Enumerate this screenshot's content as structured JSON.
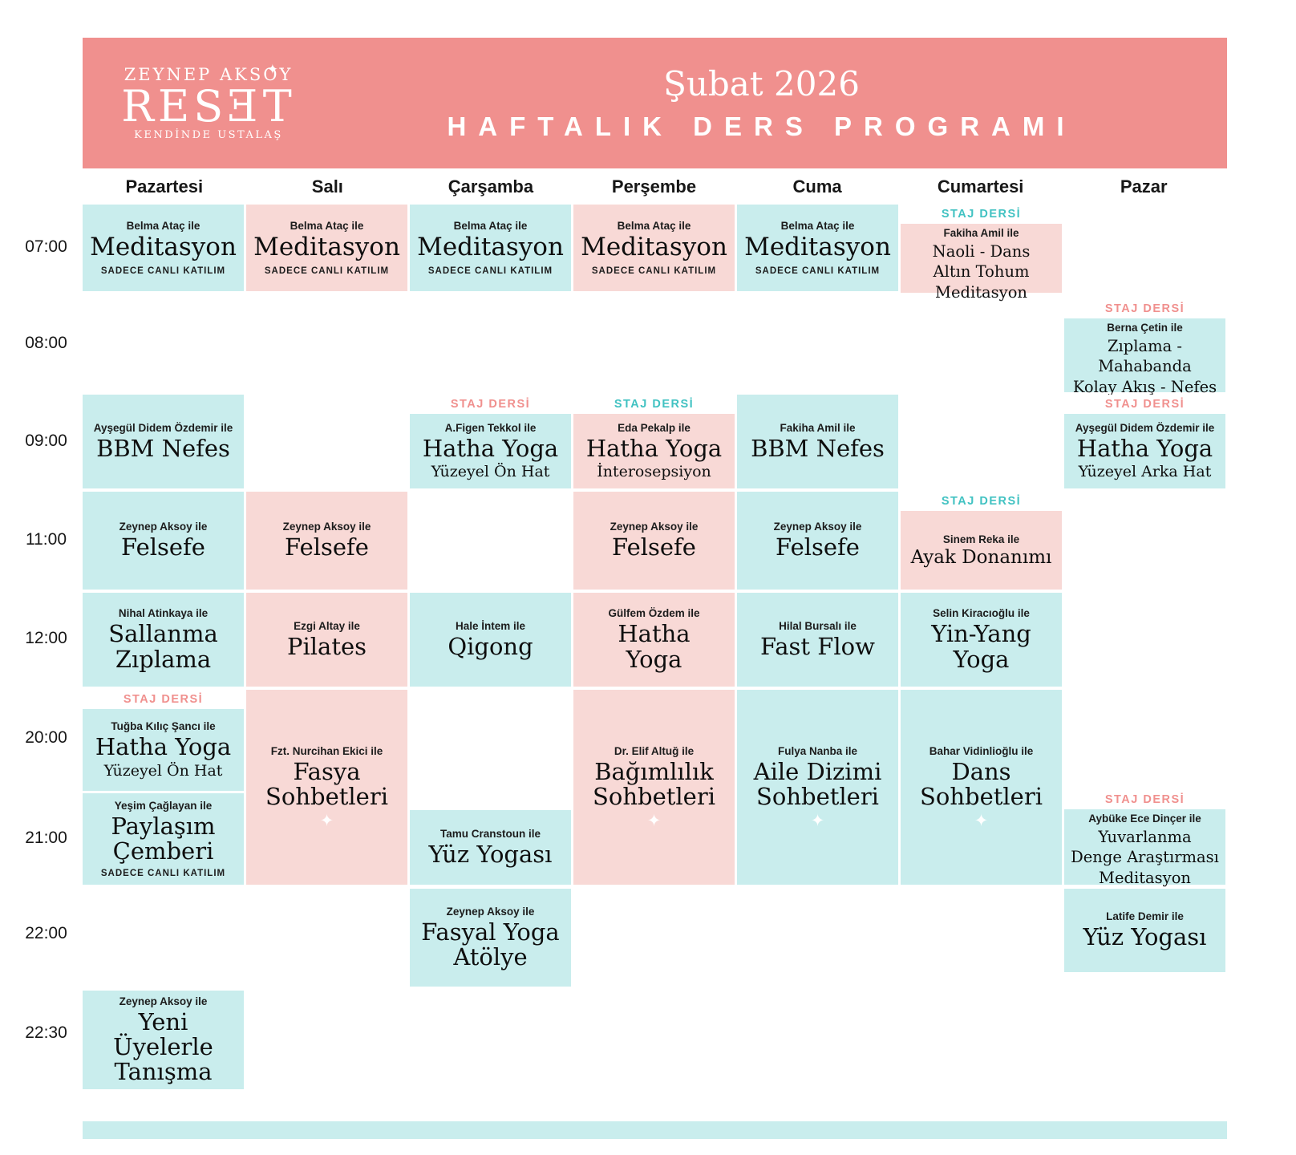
{
  "header": {
    "logo": {
      "top": "ZEYNEP AKSOY",
      "main": "RESƎT",
      "bottom": "KENDİNDE USTALAŞ"
    },
    "month": "Şubat 2026",
    "title": "HAFTALIK DERS PROGRAMI"
  },
  "labels": {
    "staj": "STAJ DERSİ",
    "live": "SADECE CANLI KATILIM"
  },
  "icons": {
    "sparkle": "✦"
  },
  "colors": {
    "banner": "#f0908e",
    "teal_cell": "#c9eded",
    "pink_cell": "#f8d9d6",
    "staj_teal": "#41c2c2",
    "staj_pink": "#f0908e"
  },
  "days": [
    "Pazartesi",
    "Salı",
    "Çarşamba",
    "Perşembe",
    "Cuma",
    "Cumartesi",
    "Pazar"
  ],
  "times": [
    "07:00",
    "08:00",
    "09:00",
    "11:00",
    "12:00",
    "20:00",
    "21:00",
    "22:00",
    "22:30"
  ],
  "cells": {
    "mon_0700": {
      "instructor": "Belma Ataç ile",
      "title": "Meditasyon"
    },
    "tue_0700": {
      "instructor": "Belma Ataç ile",
      "title": "Meditasyon"
    },
    "wed_0700": {
      "instructor": "Belma Ataç ile",
      "title": "Meditasyon"
    },
    "thu_0700": {
      "instructor": "Belma Ataç ile",
      "title": "Meditasyon"
    },
    "fri_0700": {
      "instructor": "Belma Ataç ile",
      "title": "Meditasyon"
    },
    "sat_0700": {
      "instructor": "Fakiha Amil ile",
      "title": "Naoli - Dans\nAltın Tohum\nMeditasyon"
    },
    "sun_0800": {
      "instructor": "Berna Çetin ile",
      "title": "Zıplama - Mahabanda\nKolay Akış - Nefes"
    },
    "mon_0900": {
      "instructor": "Ayşegül Didem Özdemir ile",
      "title": "BBM Nefes"
    },
    "wed_0900": {
      "instructor": "A.Figen Tekkol ile",
      "title": "Hatha Yoga",
      "subtitle": "Yüzeyel Ön Hat"
    },
    "thu_0900": {
      "instructor": "Eda Pekalp ile",
      "title": "Hatha Yoga",
      "subtitle": "İnterosepsiyon"
    },
    "fri_0900": {
      "instructor": "Fakiha Amil ile",
      "title": "BBM Nefes"
    },
    "sun_0900": {
      "instructor": "Ayşegül Didem Özdemir ile",
      "title": "Hatha Yoga",
      "subtitle": "Yüzeyel Arka Hat"
    },
    "mon_1100": {
      "instructor": "Zeynep Aksoy ile",
      "title": "Felsefe"
    },
    "tue_1100": {
      "instructor": "Zeynep Aksoy ile",
      "title": "Felsefe"
    },
    "thu_1100": {
      "instructor": "Zeynep Aksoy ile",
      "title": "Felsefe"
    },
    "fri_1100": {
      "instructor": "Zeynep Aksoy ile",
      "title": "Felsefe"
    },
    "sat_1100": {
      "instructor": "Sinem Reka ile",
      "title": "Ayak Donanımı"
    },
    "mon_1200": {
      "instructor": "Nihal Atinkaya ile",
      "title": "Sallanma\nZıplama"
    },
    "tue_1200": {
      "instructor": "Ezgi Altay ile",
      "title": "Pilates"
    },
    "wed_1200": {
      "instructor": "Hale İntem ile",
      "title": "Qigong"
    },
    "thu_1200": {
      "instructor": "Gülfem Özdem ile",
      "title": "Hatha\nYoga"
    },
    "fri_1200": {
      "instructor": "Hilal Bursalı ile",
      "title": "Fast Flow"
    },
    "sat_1200": {
      "instructor": "Selin Kiracıoğlu ile",
      "title": "Yin-Yang\nYoga"
    },
    "mon_2000": {
      "instructor": "Tuğba Kılıç Şancı ile",
      "title": "Hatha Yoga",
      "subtitle": "Yüzeyel Ön Hat"
    },
    "tue_2000": {
      "instructor": "Fzt. Nurcihan Ekici ile",
      "title": "Fasya\nSohbetleri"
    },
    "thu_2000": {
      "instructor": "Dr. Elif Altuğ ile",
      "title": "Bağımlılık\nSohbetleri"
    },
    "fri_2000": {
      "instructor": "Fulya Nanba ile",
      "title": "Aile Dizimi\nSohbetleri"
    },
    "sat_2000": {
      "instructor": "Bahar Vidinlioğlu ile",
      "title": "Dans\nSohbetleri"
    },
    "mon_2100": {
      "instructor": "Yeşim Çağlayan ile",
      "title": "Paylaşım\nÇemberi"
    },
    "wed_2100": {
      "instructor": "Tamu Cranstoun ile",
      "title": "Yüz Yogası"
    },
    "sun_2100": {
      "instructor": "Aybüke Ece Dinçer ile",
      "title": "Yuvarlanma\nDenge Araştırması\nMeditasyon"
    },
    "wed_2200": {
      "instructor": "Zeynep Aksoy ile",
      "title": "Fasyal Yoga\nAtölye"
    },
    "sun_2200": {
      "instructor": "Latife Demir ile",
      "title": "Yüz Yogası"
    },
    "mon_2230": {
      "instructor": "Zeynep Aksoy ile",
      "title": "Yeni Üyelerle\nTanışma"
    }
  }
}
